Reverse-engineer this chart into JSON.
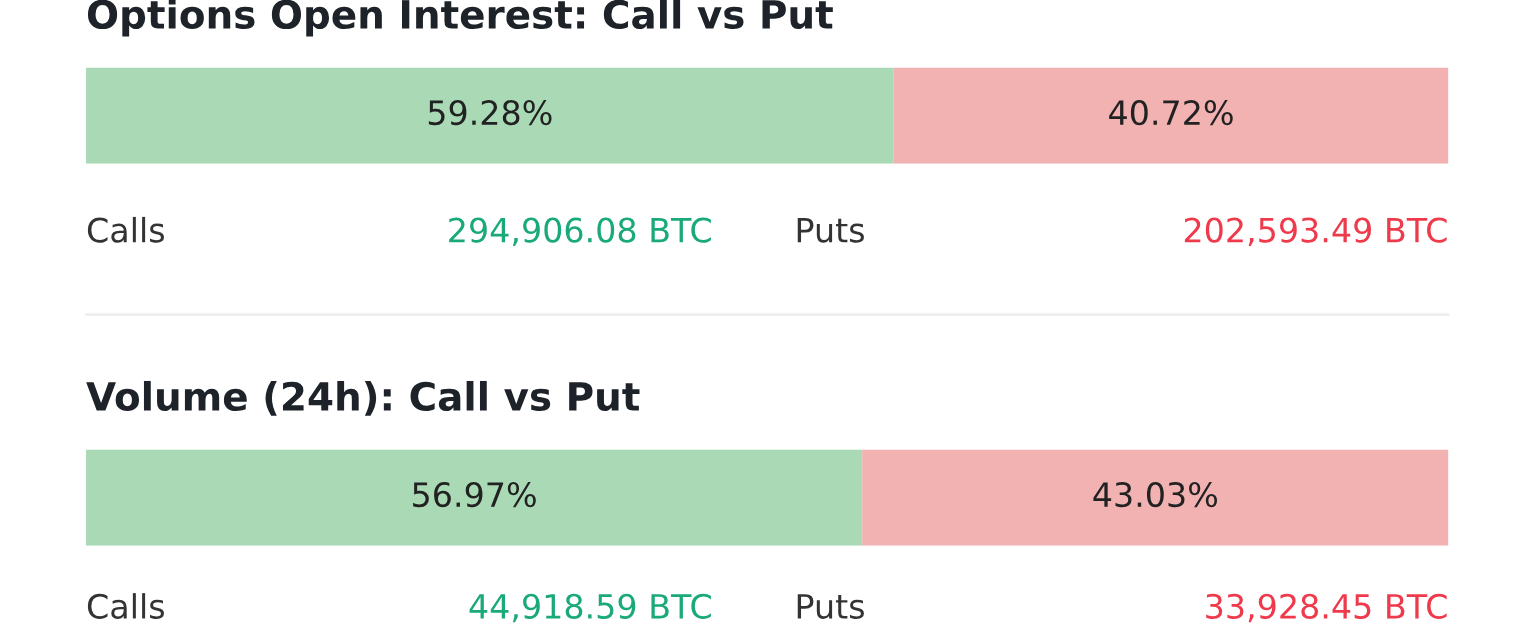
{
  "chart_data": [
    {
      "type": "bar",
      "orientation": "horizontal",
      "stacked": true,
      "title": "Options Open Interest: Call vs Put",
      "categories": [
        null
      ],
      "series": [
        {
          "color": "#a9dab5",
          "values": [
            59.28
          ],
          "value_labels": [
            "59.28%"
          ]
        },
        {
          "color": "#f2b2b2",
          "values": [
            40.72
          ],
          "value_labels": [
            "40.72%"
          ]
        }
      ],
      "annotations": [
        "Calls",
        "294,906.08 BTC",
        "Puts",
        "202,593.49 BTC"
      ]
    },
    {
      "type": "bar",
      "orientation": "horizontal",
      "stacked": true,
      "title": "Volume (24h): Call vs Put",
      "categories": [
        null
      ],
      "series": [
        {
          "color": "#a9dab5",
          "values": [
            56.97
          ],
          "value_labels": [
            "56.97%"
          ]
        },
        {
          "color": "#f2b2b2",
          "values": [
            43.03
          ],
          "value_labels": [
            "43.03%"
          ]
        }
      ],
      "annotations": [
        "Calls",
        "44,918.59 BTC",
        "Puts",
        "33,928.45 BTC"
      ]
    }
  ]
}
